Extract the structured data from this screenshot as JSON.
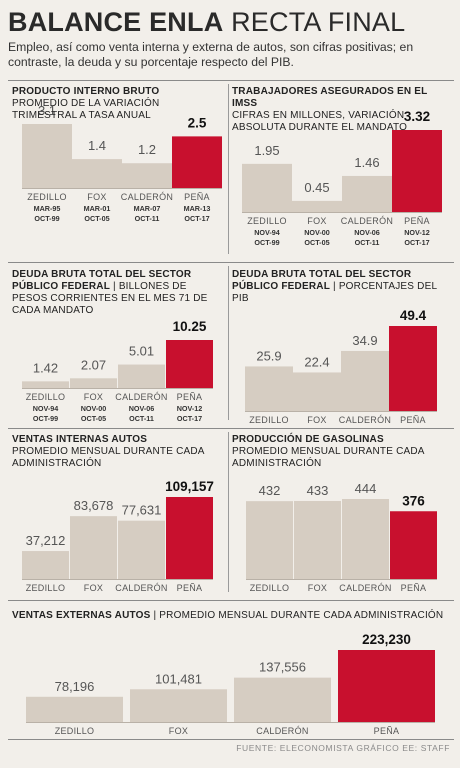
{
  "header": {
    "title_bold": "BALANCE ENLA",
    "title_light": "RECTA FINAL",
    "subtitle": "Empleo, así como venta interna y externa de autos, son cifras positivas; en contraste, la deuda y su porcentaje respecto del PIB."
  },
  "colors": {
    "bar": "#d6cdc2",
    "highlight": "#c8102e",
    "text": "#2a2a2a",
    "muted": "#555555"
  },
  "footer": {
    "source": "FUENTE: ELECONOMISTA GRÁFICO EE: STAFF"
  },
  "chart_data": [
    {
      "type": "bar",
      "title": "PRODUCTO INTERNO BRUTO",
      "subtitle": "PROMEDIO DE LA VARIACIÓN TRIMESTRAL A TASA ANUAL",
      "categories": [
        "ZEDILLO",
        "FOX",
        "CALDERÓN",
        "PEÑA"
      ],
      "periods": [
        [
          "MAR-95",
          "OCT-99"
        ],
        [
          "MAR-01",
          "OCT-05"
        ],
        [
          "MAR-07",
          "OCT-11"
        ],
        [
          "MAR-13",
          "OCT-17"
        ]
      ],
      "values": [
        3.1,
        1.4,
        1.2,
        2.5
      ],
      "labels": [
        "3.1",
        "1.4",
        "1.2",
        "2.5"
      ],
      "highlight": 3
    },
    {
      "type": "bar",
      "title": "TRABAJADORES ASEGURADOS EN EL IMSS",
      "subtitle": "CIFRAS EN MILLONES, VARIACIÓN ABSOLUTA DURANTE EL MANDATO",
      "categories": [
        "ZEDILLO",
        "FOX",
        "CALDERÓN",
        "PEÑA"
      ],
      "periods": [
        [
          "NOV-94",
          "OCT-99"
        ],
        [
          "NOV-00",
          "OCT-05"
        ],
        [
          "NOV-06",
          "OCT-11"
        ],
        [
          "NOV-12",
          "OCT-17"
        ]
      ],
      "values": [
        1.95,
        0.45,
        1.46,
        3.32
      ],
      "labels": [
        "1.95",
        "0.45",
        "1.46",
        "3.32"
      ],
      "highlight": 3
    },
    {
      "type": "bar",
      "title": "DEUDA BRUTA TOTAL DEL SECTOR PÚBLICO FEDERAL",
      "subtitle": "BILLONES DE PESOS CORRIENTES EN EL MES 71 DE CADA MANDATO",
      "categories": [
        "ZEDILLO",
        "FOX",
        "CALDERÓN",
        "PEÑA"
      ],
      "periods": [
        [
          "NOV-94",
          "OCT-99"
        ],
        [
          "NOV-00",
          "OCT-05"
        ],
        [
          "NOV-06",
          "OCT-11"
        ],
        [
          "NOV-12",
          "OCT-17"
        ]
      ],
      "values": [
        1.42,
        2.07,
        5.01,
        10.25
      ],
      "labels": [
        "1.42",
        "2.07",
        "5.01",
        "10.25"
      ],
      "highlight": 3
    },
    {
      "type": "bar",
      "title": "DEUDA BRUTA TOTAL DEL SECTOR PÚBLICO FEDERAL",
      "subtitle": "PORCENTAJES DEL PIB",
      "categories": [
        "ZEDILLO",
        "FOX",
        "CALDERÓN",
        "PEÑA"
      ],
      "values": [
        25.9,
        22.4,
        34.9,
        49.4
      ],
      "labels": [
        "25.9",
        "22.4",
        "34.9",
        "49.4"
      ],
      "highlight": 3
    },
    {
      "type": "bar",
      "title": "VENTAS INTERNAS AUTOS",
      "subtitle": "PROMEDIO MENSUAL DURANTE CADA ADMINISTRACIÓN",
      "categories": [
        "ZEDILLO",
        "FOX",
        "CALDERÓN",
        "PEÑA"
      ],
      "values": [
        37212,
        83678,
        77631,
        109157
      ],
      "labels": [
        "37,212",
        "83,678",
        "77,631",
        "109,157"
      ],
      "highlight": 3
    },
    {
      "type": "bar",
      "title": "PRODUCCIÓN DE GASOLINAS",
      "subtitle": "PROMEDIO MENSUAL DURANTE CADA ADMINISTRACIÓN",
      "categories": [
        "ZEDILLO",
        "FOX",
        "CALDERÓN",
        "PEÑA"
      ],
      "values": [
        432,
        433,
        444,
        376
      ],
      "labels": [
        "432",
        "433",
        "444",
        "376"
      ],
      "highlight": 3
    },
    {
      "type": "bar",
      "title": "VENTAS EXTERNAS AUTOS",
      "subtitle": "PROMEDIO MENSUAL DURANTE CADA ADMINISTRACIÓN",
      "categories": [
        "ZEDILLO",
        "FOX",
        "CALDERÓN",
        "PEÑA"
      ],
      "values": [
        78196,
        101481,
        137556,
        223230
      ],
      "labels": [
        "78,196",
        "101,481",
        "137,556",
        "223,230"
      ],
      "highlight": 3
    }
  ]
}
